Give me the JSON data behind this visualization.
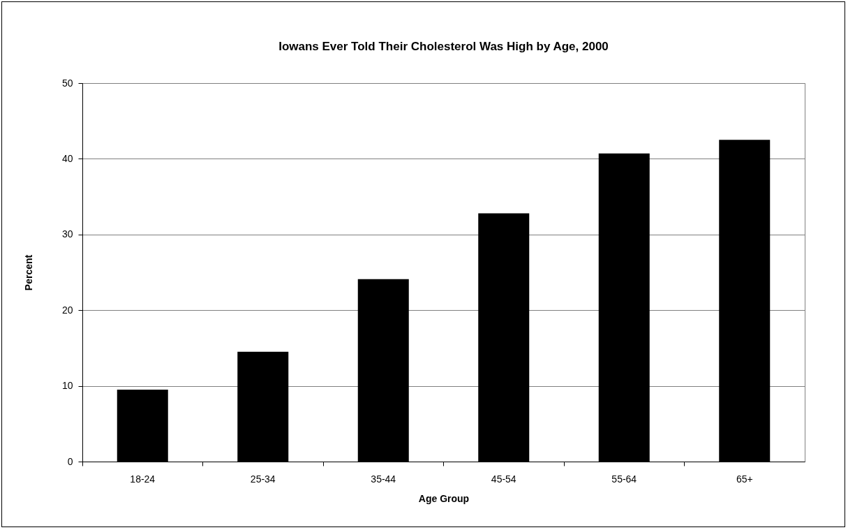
{
  "chart_data": {
    "type": "bar",
    "title": "Iowans Ever Told Their Cholesterol Was High by Age, 2000",
    "xlabel": "Age Group",
    "ylabel": "Percent",
    "categories": [
      "18-24",
      "25-34",
      "35-44",
      "45-54",
      "55-64",
      "65+"
    ],
    "values": [
      9.5,
      14.5,
      24.1,
      32.8,
      40.7,
      42.5
    ],
    "color": "#000000",
    "ylim": [
      0,
      50
    ],
    "yticks": [
      0,
      10,
      20,
      30,
      40,
      50
    ],
    "grid": "y"
  }
}
